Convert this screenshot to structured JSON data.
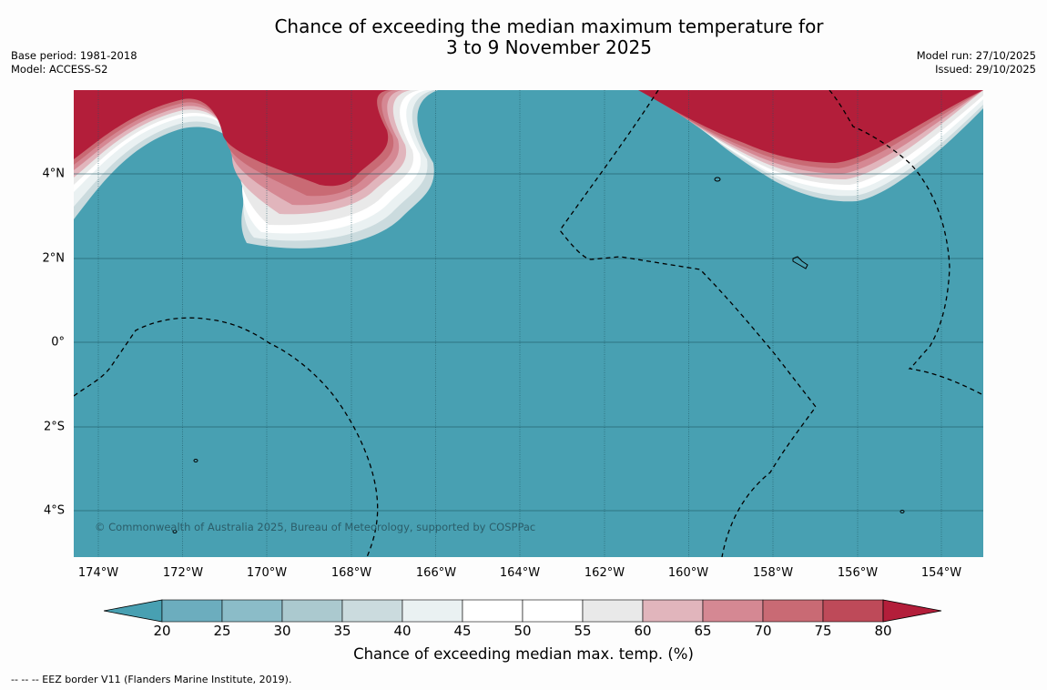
{
  "title": {
    "line1": "Chance of exceeding the median maximum temperature for",
    "line2": "3 to 9 November 2025"
  },
  "meta": {
    "base_period": "Base period: 1981-2018",
    "model": "Model: ACCESS-S2",
    "model_run": "Model run: 27/10/2025",
    "issued": "Issued: 29/10/2025"
  },
  "map": {
    "ocean_color": "#48a0b2",
    "warm_color": "#b31e3a",
    "lat_labels": [
      "4°N",
      "2°N",
      "0°",
      "2°S",
      "4°S"
    ],
    "lon_labels": [
      "174°W",
      "172°W",
      "170°W",
      "168°W",
      "166°W",
      "164°W",
      "162°W",
      "160°W",
      "158°W",
      "156°W",
      "154°W"
    ],
    "copyright": "© Commonwealth of Australia 2025, Bureau of Meteorology, supported by COSPPac"
  },
  "colorbar": {
    "ticks": [
      "20",
      "25",
      "30",
      "35",
      "40",
      "45",
      "50",
      "55",
      "60",
      "65",
      "70",
      "75",
      "80"
    ],
    "label": "Chance of exceeding median max. temp. (%)",
    "colors": [
      "#48a0b2",
      "#6cadbe",
      "#8bbcc8",
      "#abc9cf",
      "#cbdbde",
      "#eaf1f2",
      "#ffffff",
      "#ffffff",
      "#e9e9e9",
      "#e1b5bc",
      "#d58893",
      "#c96a74",
      "#be4a59",
      "#b31e3a"
    ]
  },
  "footnote": "--  --  -- EEZ border V11 (Flanders Marine Institute, 2019)."
}
